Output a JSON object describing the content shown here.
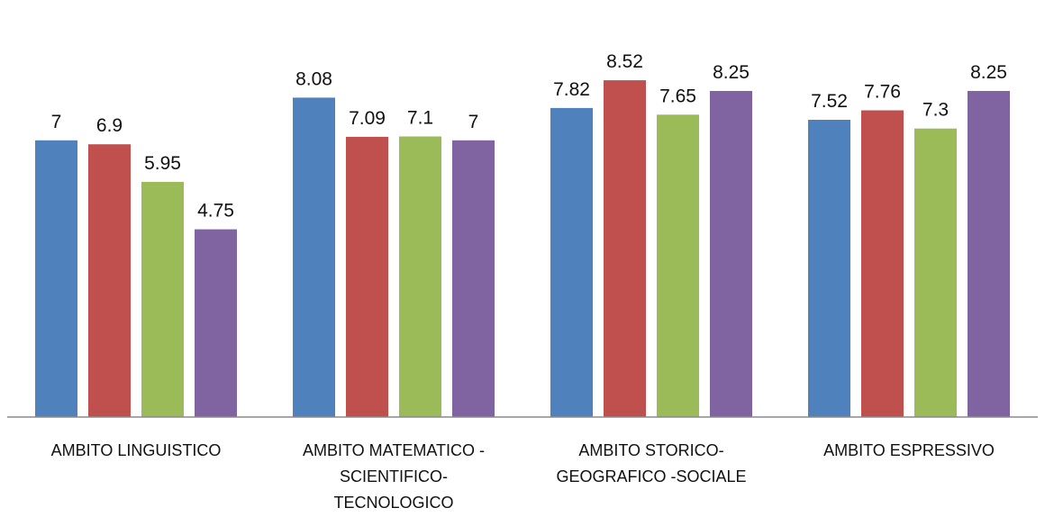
{
  "chart_data": {
    "type": "bar",
    "title": "",
    "xlabel": "",
    "ylabel": "",
    "ylim": [
      0,
      10
    ],
    "grid": false,
    "legend": "none",
    "categories": [
      [
        "AMBITO LINGUISTICO"
      ],
      [
        "AMBITO MATEMATICO -",
        "SCIENTIFICO-",
        "TECNOLOGICO"
      ],
      [
        "AMBITO STORICO-",
        "GEOGRAFICO -SOCIALE"
      ],
      [
        "AMBITO ESPRESSIVO"
      ]
    ],
    "series": [
      {
        "color": "#4F81BD",
        "values": [
          7,
          8.08,
          7.82,
          7.52
        ]
      },
      {
        "color": "#C0504D",
        "values": [
          6.9,
          7.09,
          8.52,
          7.76
        ]
      },
      {
        "color": "#9BBB59",
        "values": [
          5.95,
          7.1,
          7.65,
          7.3
        ]
      },
      {
        "color": "#8064A2",
        "values": [
          4.75,
          7,
          8.25,
          8.25
        ]
      }
    ]
  }
}
